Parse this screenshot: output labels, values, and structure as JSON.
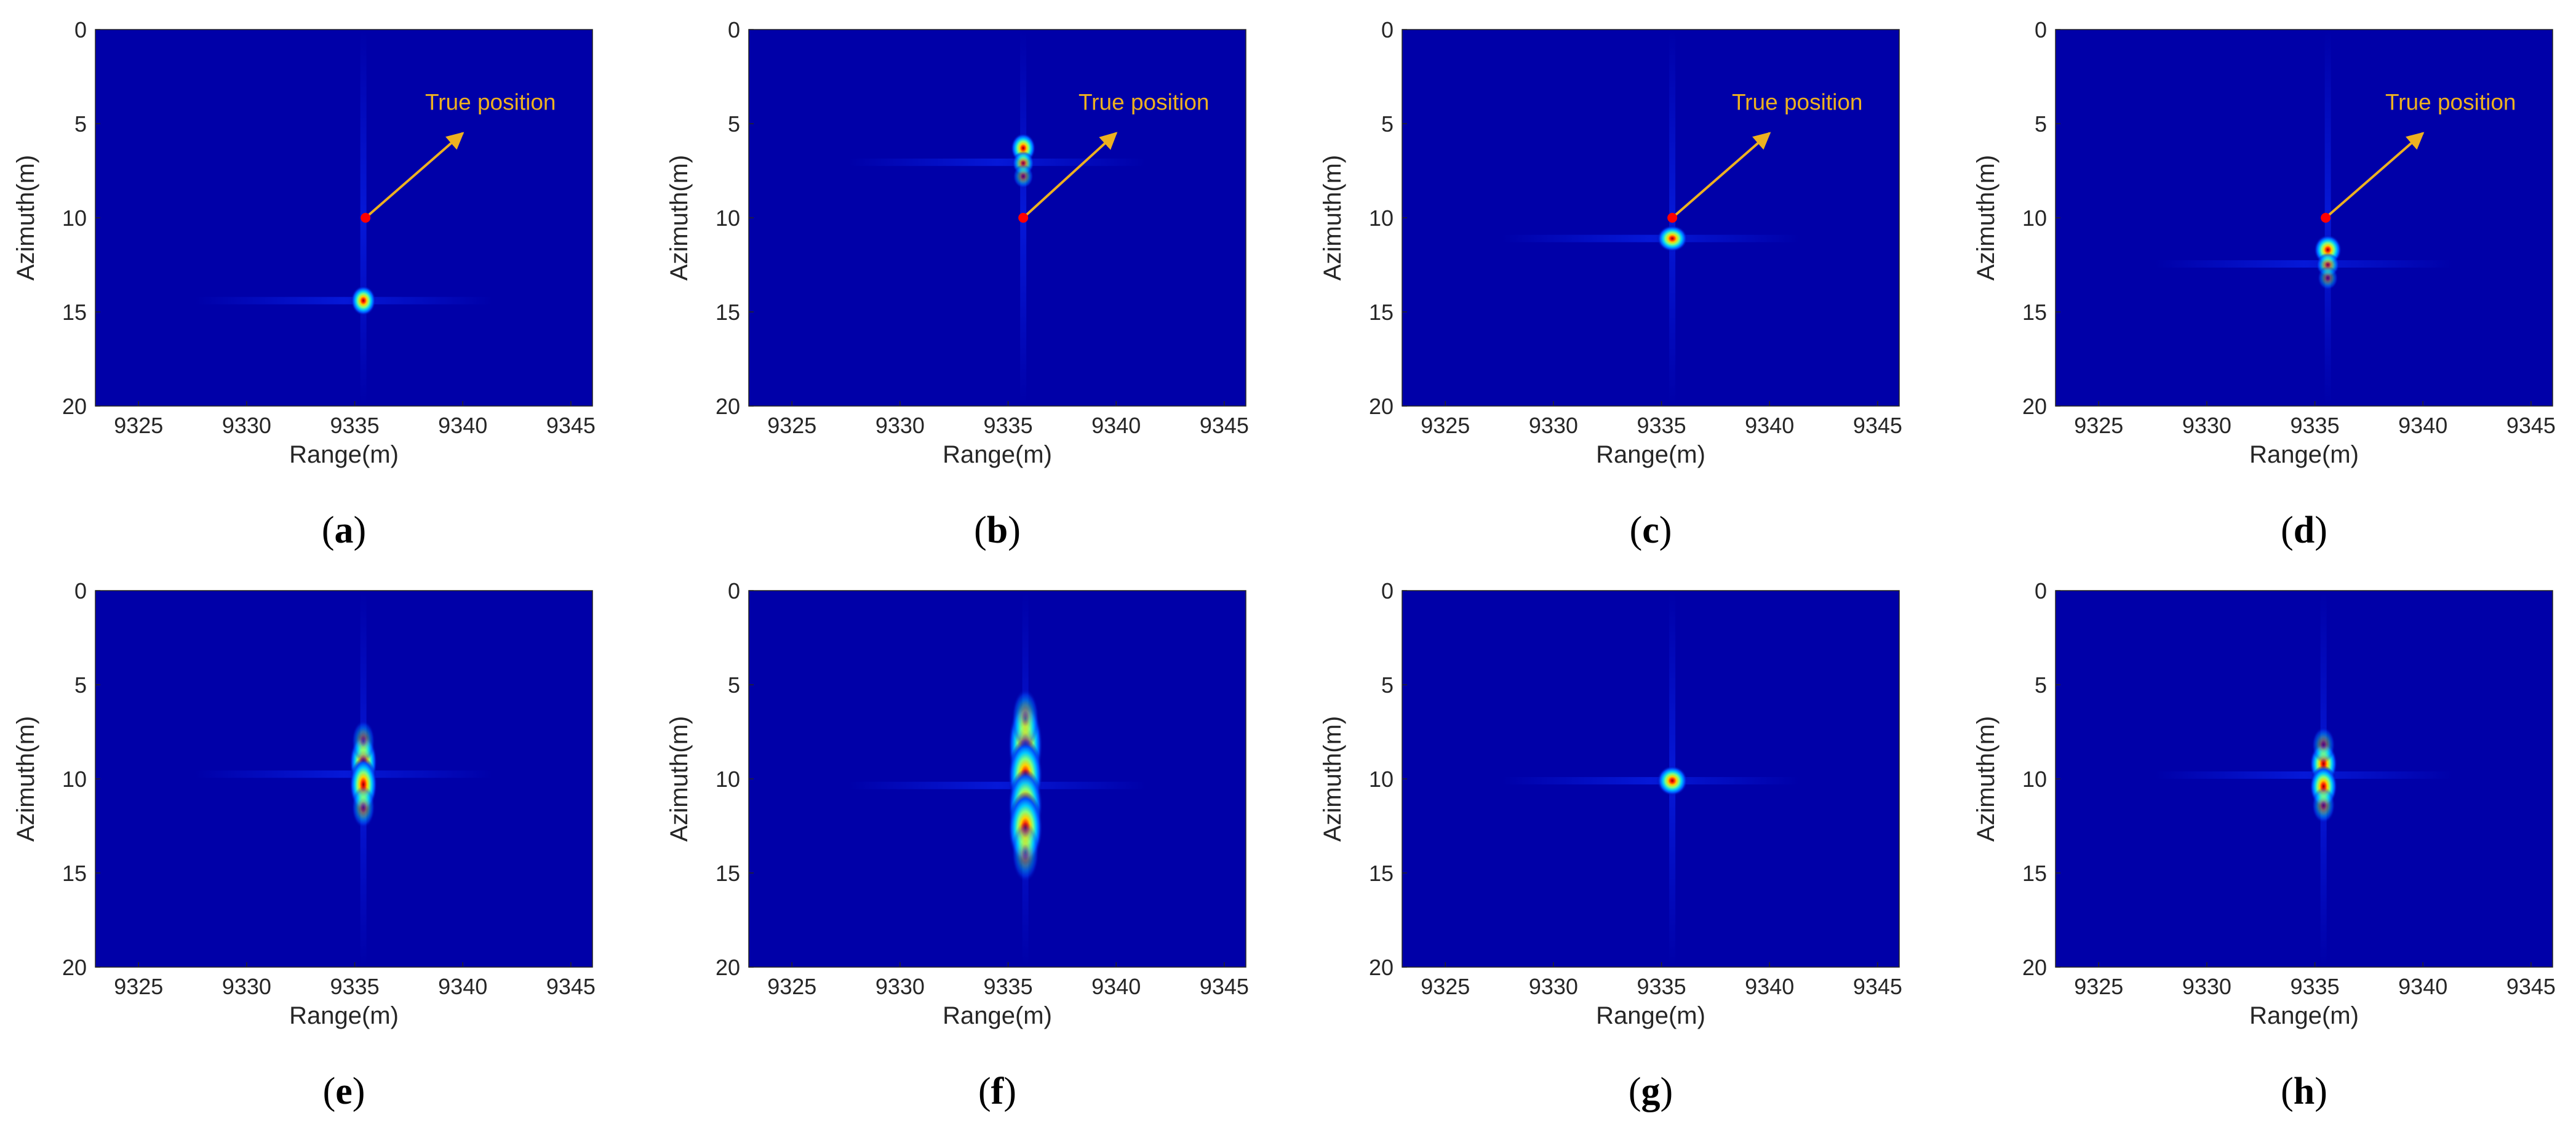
{
  "figure": {
    "description_layout": "2x4 grid"
  },
  "colors": {
    "plot_background": "#0000A8",
    "annotation": "#EDB120",
    "marker": "#FF0000",
    "axis": "#262626"
  },
  "chart_data": [
    {
      "type": "heatmap",
      "caption_letter": "a",
      "xlabel": "Range(m)",
      "ylabel": "Azimuth(m)",
      "xlim": [
        9323,
        9346
      ],
      "ylim": [
        0,
        20
      ],
      "y_reversed": true,
      "xticks": [
        "9325",
        "9330",
        "9335",
        "9340",
        "9345"
      ],
      "yticks": [
        "0",
        "5",
        "10",
        "15",
        "20"
      ],
      "peaks": [
        {
          "x": 9335.4,
          "y": 14.4,
          "intensity": 1.0,
          "spread_x": 0.18,
          "spread_y": 0.25
        }
      ],
      "true_position": {
        "x": 9335.5,
        "y": 10
      },
      "annotation": {
        "text": "True position",
        "arrow_to": {
          "x": 9340,
          "y": 5.5
        }
      }
    },
    {
      "type": "heatmap",
      "caption_letter": "b",
      "xlabel": "Range(m)",
      "ylabel": "Azimuth(m)",
      "xlim": [
        9323,
        9346
      ],
      "ylim": [
        0,
        20
      ],
      "y_reversed": true,
      "xticks": [
        "9325",
        "9330",
        "9335",
        "9340",
        "9345"
      ],
      "yticks": [
        "0",
        "5",
        "10",
        "15",
        "20"
      ],
      "peaks": [
        {
          "x": 9335.7,
          "y": 6.3,
          "intensity": 1.0,
          "spread_x": 0.18,
          "spread_y": 0.25
        },
        {
          "x": 9335.7,
          "y": 7.1,
          "intensity": 0.7,
          "spread_x": 0.16,
          "spread_y": 0.2
        },
        {
          "x": 9335.7,
          "y": 7.8,
          "intensity": 0.45,
          "spread_x": 0.15,
          "spread_y": 0.2
        }
      ],
      "true_position": {
        "x": 9335.7,
        "y": 10
      },
      "annotation": {
        "text": "True position",
        "arrow_to": {
          "x": 9340,
          "y": 5.5
        }
      }
    },
    {
      "type": "heatmap",
      "caption_letter": "c",
      "xlabel": "Range(m)",
      "ylabel": "Azimuth(m)",
      "xlim": [
        9323,
        9346
      ],
      "ylim": [
        0,
        20
      ],
      "y_reversed": true,
      "xticks": [
        "9325",
        "9330",
        "9335",
        "9340",
        "9345"
      ],
      "yticks": [
        "0",
        "5",
        "10",
        "15",
        "20"
      ],
      "peaks": [
        {
          "x": 9335.5,
          "y": 11.1,
          "intensity": 1.0,
          "spread_x": 0.22,
          "spread_y": 0.22
        }
      ],
      "true_position": {
        "x": 9335.5,
        "y": 10
      },
      "annotation": {
        "text": "True position",
        "arrow_to": {
          "x": 9340,
          "y": 5.5
        }
      }
    },
    {
      "type": "heatmap",
      "caption_letter": "d",
      "xlabel": "Range(m)",
      "ylabel": "Azimuth(m)",
      "xlim": [
        9323,
        9346
      ],
      "ylim": [
        0,
        20
      ],
      "y_reversed": true,
      "xticks": [
        "9325",
        "9330",
        "9335",
        "9340",
        "9345"
      ],
      "yticks": [
        "0",
        "5",
        "10",
        "15",
        "20"
      ],
      "peaks": [
        {
          "x": 9335.6,
          "y": 11.7,
          "intensity": 1.0,
          "spread_x": 0.2,
          "spread_y": 0.25
        },
        {
          "x": 9335.6,
          "y": 12.5,
          "intensity": 0.65,
          "spread_x": 0.17,
          "spread_y": 0.2
        },
        {
          "x": 9335.6,
          "y": 13.2,
          "intensity": 0.4,
          "spread_x": 0.15,
          "spread_y": 0.2
        }
      ],
      "true_position": {
        "x": 9335.5,
        "y": 10
      },
      "annotation": {
        "text": "True position",
        "arrow_to": {
          "x": 9340,
          "y": 5.5
        }
      }
    },
    {
      "type": "heatmap",
      "caption_letter": "e",
      "xlabel": "Range(m)",
      "ylabel": "Azimuth(m)",
      "xlim": [
        9323,
        9346
      ],
      "ylim": [
        0,
        20
      ],
      "y_reversed": true,
      "xticks": [
        "9325",
        "9330",
        "9335",
        "9340",
        "9345"
      ],
      "yticks": [
        "0",
        "5",
        "10",
        "15",
        "20"
      ],
      "peaks": [
        {
          "x": 9335.4,
          "y": 9.1,
          "intensity": 1.0,
          "spread_x": 0.2,
          "spread_y": 0.45
        },
        {
          "x": 9335.4,
          "y": 10.3,
          "intensity": 1.0,
          "spread_x": 0.2,
          "spread_y": 0.45
        },
        {
          "x": 9335.4,
          "y": 11.5,
          "intensity": 0.45,
          "spread_x": 0.17,
          "spread_y": 0.35
        },
        {
          "x": 9335.4,
          "y": 8.0,
          "intensity": 0.4,
          "spread_x": 0.17,
          "spread_y": 0.35
        }
      ]
    },
    {
      "type": "heatmap",
      "caption_letter": "f",
      "xlabel": "Range(m)",
      "ylabel": "Azimuth(m)",
      "xlim": [
        9323,
        9346
      ],
      "ylim": [
        0,
        20
      ],
      "y_reversed": true,
      "xticks": [
        "9325",
        "9330",
        "9335",
        "9340",
        "9345"
      ],
      "yticks": [
        "0",
        "5",
        "10",
        "15",
        "20"
      ],
      "peaks": [
        {
          "x": 9335.8,
          "y": 8.2,
          "intensity": 1.0,
          "spread_x": 0.25,
          "spread_y": 0.7
        },
        {
          "x": 9335.8,
          "y": 9.8,
          "intensity": 1.0,
          "spread_x": 0.25,
          "spread_y": 0.6
        },
        {
          "x": 9335.8,
          "y": 11.4,
          "intensity": 0.95,
          "spread_x": 0.25,
          "spread_y": 0.6
        },
        {
          "x": 9335.8,
          "y": 12.6,
          "intensity": 1.0,
          "spread_x": 0.25,
          "spread_y": 0.6
        },
        {
          "x": 9335.8,
          "y": 6.8,
          "intensity": 0.45,
          "spread_x": 0.2,
          "spread_y": 0.5
        },
        {
          "x": 9335.8,
          "y": 13.9,
          "intensity": 0.4,
          "spread_x": 0.2,
          "spread_y": 0.5
        }
      ]
    },
    {
      "type": "heatmap",
      "caption_letter": "g",
      "xlabel": "Range(m)",
      "ylabel": "Azimuth(m)",
      "xlim": [
        9323,
        9346
      ],
      "ylim": [
        0,
        20
      ],
      "y_reversed": true,
      "xticks": [
        "9325",
        "9330",
        "9335",
        "9340",
        "9345"
      ],
      "yticks": [
        "0",
        "5",
        "10",
        "15",
        "20"
      ],
      "peaks": [
        {
          "x": 9335.5,
          "y": 10.1,
          "intensity": 1.0,
          "spread_x": 0.22,
          "spread_y": 0.25
        }
      ]
    },
    {
      "type": "heatmap",
      "caption_letter": "h",
      "xlabel": "Range(m)",
      "ylabel": "Azimuth(m)",
      "xlim": [
        9323,
        9346
      ],
      "ylim": [
        0,
        20
      ],
      "y_reversed": true,
      "xticks": [
        "9325",
        "9330",
        "9335",
        "9340",
        "9345"
      ],
      "yticks": [
        "0",
        "5",
        "10",
        "15",
        "20"
      ],
      "peaks": [
        {
          "x": 9335.4,
          "y": 9.2,
          "intensity": 1.0,
          "spread_x": 0.2,
          "spread_y": 0.35
        },
        {
          "x": 9335.4,
          "y": 10.4,
          "intensity": 1.0,
          "spread_x": 0.2,
          "spread_y": 0.35
        },
        {
          "x": 9335.4,
          "y": 11.4,
          "intensity": 0.45,
          "spread_x": 0.17,
          "spread_y": 0.3
        },
        {
          "x": 9335.4,
          "y": 8.2,
          "intensity": 0.4,
          "spread_x": 0.17,
          "spread_y": 0.3
        }
      ]
    }
  ]
}
